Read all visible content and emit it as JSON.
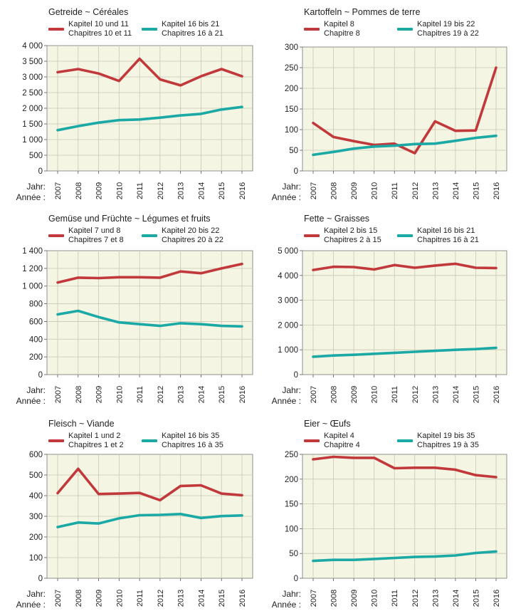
{
  "year_label": "Jahr:",
  "year_label_fr": "Année :",
  "colors": {
    "series1": "#c1393b",
    "series2": "#1aa9a5",
    "plot_bg": "#f5f5e3",
    "grid": "#c8c8b4"
  },
  "chart_data": [
    {
      "type": "line",
      "title": "Getreide ~ Céréales",
      "x": [
        "2007",
        "2008",
        "2009",
        "2010",
        "2011",
        "2012",
        "2013",
        "2014",
        "2015",
        "2016"
      ],
      "ylim": [
        0,
        4000
      ],
      "yticks": [
        0,
        500,
        1000,
        1500,
        2000,
        2500,
        3000,
        3500,
        4000
      ],
      "ytick_labels": [
        "0",
        "500",
        "1 000",
        "1 500",
        "2 000",
        "2 500",
        "3 000",
        "3 500",
        "4 000"
      ],
      "series": [
        {
          "name_de": "Kapitel 10 und 11",
          "name_fr": "Chapitres 10 et 11",
          "values": [
            3150,
            3250,
            3110,
            2870,
            3580,
            2920,
            2730,
            3020,
            3250,
            3020
          ]
        },
        {
          "name_de": "Kapitel 16 bis 21",
          "name_fr": "Chapitres 16 à 21",
          "values": [
            1300,
            1430,
            1540,
            1620,
            1640,
            1700,
            1770,
            1820,
            1960,
            2040
          ]
        }
      ]
    },
    {
      "type": "line",
      "title": "Kartoffeln ~ Pommes de terre",
      "x": [
        "2007",
        "2008",
        "2009",
        "2010",
        "2011",
        "2012",
        "2013",
        "2014",
        "2015",
        "2016"
      ],
      "ylim": [
        0,
        300
      ],
      "yticks": [
        0,
        50,
        100,
        150,
        200,
        250,
        300
      ],
      "ytick_labels": [
        "0",
        "50",
        "100",
        "150",
        "200",
        "250",
        "300"
      ],
      "series": [
        {
          "name_de": "Kapitel 8",
          "name_fr": "Chapitre 8",
          "values": [
            116,
            82,
            72,
            63,
            66,
            43,
            120,
            97,
            98,
            250
          ]
        },
        {
          "name_de": "Kapitel 19 bis 22",
          "name_fr": "Chapitres 19 à 22",
          "values": [
            39,
            46,
            54,
            59,
            61,
            65,
            66,
            73,
            80,
            85
          ]
        }
      ]
    },
    {
      "type": "line",
      "title": "Gemüse und Früchte ~ Légumes et fruits",
      "x": [
        "2007",
        "2008",
        "2009",
        "2010",
        "2011",
        "2012",
        "2013",
        "2014",
        "2015",
        "2016"
      ],
      "ylim": [
        0,
        1400
      ],
      "yticks": [
        0,
        200,
        400,
        600,
        800,
        1000,
        1200,
        1400
      ],
      "ytick_labels": [
        "0",
        "200",
        "400",
        "600",
        "800",
        "1 000",
        "1 200",
        "1 400"
      ],
      "series": [
        {
          "name_de": "Kapitel 7 und 8",
          "name_fr": "Chapitres 7 et 8",
          "values": [
            1040,
            1095,
            1090,
            1100,
            1100,
            1095,
            1165,
            1145,
            1200,
            1250
          ]
        },
        {
          "name_de": "Kapitel 20 bis 22",
          "name_fr": "Chapitres 20 à 22",
          "values": [
            680,
            720,
            650,
            590,
            570,
            550,
            580,
            570,
            550,
            545
          ]
        }
      ]
    },
    {
      "type": "line",
      "title": "Fette ~ Graisses",
      "x": [
        "2007",
        "2008",
        "2009",
        "2010",
        "2011",
        "2012",
        "2013",
        "2014",
        "2015",
        "2016"
      ],
      "ylim": [
        0,
        5000
      ],
      "yticks": [
        0,
        1000,
        2000,
        3000,
        4000,
        5000
      ],
      "ytick_labels": [
        "0",
        "1 000",
        "2 000",
        "3 000",
        "4 000",
        "5 000"
      ],
      "series": [
        {
          "name_de": "Kapitel 2 bis 15",
          "name_fr": "Chapitres 2 à 15",
          "values": [
            4220,
            4350,
            4340,
            4240,
            4420,
            4310,
            4400,
            4470,
            4310,
            4300
          ]
        },
        {
          "name_de": "Kapitel 16 bis 21",
          "name_fr": "Chapitres 16 à 21",
          "values": [
            720,
            770,
            800,
            840,
            880,
            920,
            960,
            1000,
            1030,
            1080
          ]
        }
      ]
    },
    {
      "type": "line",
      "title": "Fleisch ~ Viande",
      "x": [
        "2007",
        "2008",
        "2009",
        "2010",
        "2011",
        "2012",
        "2013",
        "2014",
        "2015",
        "2016"
      ],
      "ylim": [
        0,
        600
      ],
      "yticks": [
        0,
        100,
        200,
        300,
        400,
        500,
        600
      ],
      "ytick_labels": [
        "0",
        "100",
        "200",
        "300",
        "400",
        "500",
        "600"
      ],
      "series": [
        {
          "name_de": "Kapitel 1 und 2",
          "name_fr": "Chapitres 1 et 2",
          "values": [
            412,
            530,
            408,
            410,
            413,
            378,
            447,
            450,
            410,
            402
          ]
        },
        {
          "name_de": "Kapitel 16 bis 35",
          "name_fr": "Chapitres 16 à 35",
          "values": [
            248,
            270,
            265,
            290,
            305,
            307,
            311,
            292,
            301,
            304
          ]
        }
      ]
    },
    {
      "type": "line",
      "title": "Eier ~ Œufs",
      "x": [
        "2007",
        "2008",
        "2009",
        "2010",
        "2011",
        "2012",
        "2013",
        "2014",
        "2015",
        "2016"
      ],
      "ylim": [
        0,
        250
      ],
      "yticks": [
        0,
        50,
        100,
        150,
        200,
        250
      ],
      "ytick_labels": [
        "0",
        "50",
        "100",
        "150",
        "200",
        "250"
      ],
      "series": [
        {
          "name_de": "Kapitel 4",
          "name_fr": "Chapitre 4",
          "values": [
            240,
            245,
            243,
            243,
            222,
            223,
            223,
            219,
            208,
            204
          ]
        },
        {
          "name_de": "Kapitel 19 bis 35",
          "name_fr": "Chapitres 19 à 35",
          "values": [
            35,
            37,
            37,
            39,
            41,
            43,
            44,
            46,
            51,
            54
          ]
        }
      ]
    }
  ]
}
